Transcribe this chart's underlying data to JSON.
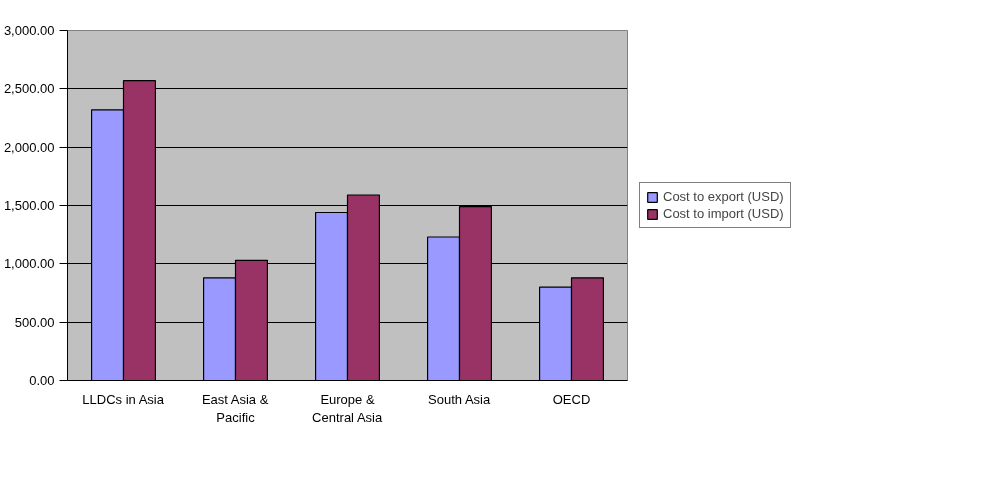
{
  "chart_data": {
    "type": "bar",
    "categories": [
      "LLDCs in Asia",
      "East Asia & Pacific",
      "Europe & Central Asia",
      "South Asia",
      "OECD"
    ],
    "series": [
      {
        "name": "Cost to export (USD)",
        "color": "#9999ff",
        "values": [
          2320,
          880,
          1440,
          1230,
          800
        ]
      },
      {
        "name": "Cost to import (USD)",
        "color": "#993366",
        "values": [
          2570,
          1030,
          1590,
          1490,
          880
        ]
      }
    ],
    "ylim": [
      0,
      3000
    ],
    "yticks": [
      {
        "value": 0,
        "label": "0.00"
      },
      {
        "value": 500,
        "label": "500.00"
      },
      {
        "value": 1000,
        "label": "1,000.00"
      },
      {
        "value": 1500,
        "label": "1,500.00"
      },
      {
        "value": 2000,
        "label": "2,000.00"
      },
      {
        "value": 2500,
        "label": "2,500.00"
      },
      {
        "value": 3000,
        "label": "3,000.00"
      }
    ],
    "grid": "y",
    "legend": "right"
  }
}
